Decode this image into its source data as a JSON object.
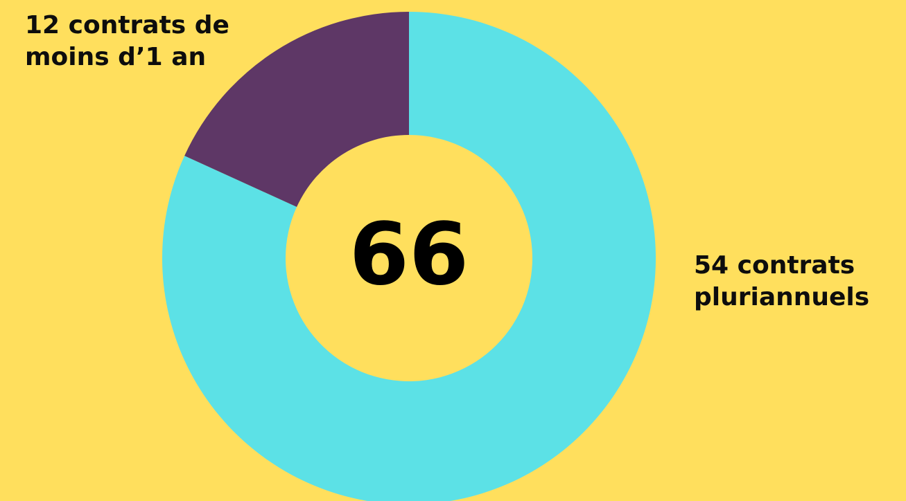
{
  "colors": {
    "background": "#FFDF5D",
    "multi_year": "#5CE1E6",
    "short_term": "#5E3766",
    "text": "#0D0D0D"
  },
  "chart_data": {
    "type": "pie",
    "total": "66",
    "slices": [
      {
        "value": 54,
        "color": "#5CE1E6"
      },
      {
        "value": 12,
        "color": "#5E3766"
      }
    ],
    "labels": {
      "short_term": [
        "12 contrats de",
        "moins d’1 an"
      ],
      "multi_year": [
        "54 contrats",
        "pluriannuels"
      ]
    }
  }
}
